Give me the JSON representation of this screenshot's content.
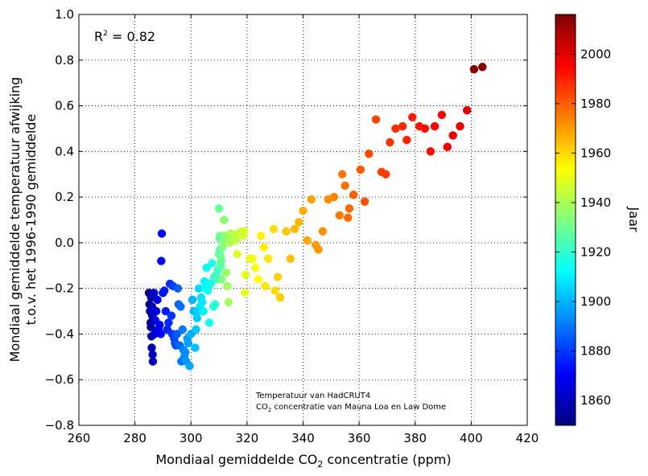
{
  "chart_data": {
    "type": "scatter",
    "title": "",
    "xlabel": "Mondiaal gemiddelde CO₂ concentratie (ppm)",
    "xlabel_parts": {
      "pre": "Mondiaal gemiddelde CO",
      "sub": "2",
      "post": " concentratie (ppm)"
    },
    "ylabel_line1": "Mondiaal gemiddelde temperatuur afwijking",
    "ylabel_line2": "t.o.v. het 1996-1990 gemiddelde",
    "xlim": [
      260,
      420
    ],
    "ylim": [
      -0.8,
      1.0
    ],
    "xticks": [
      260,
      280,
      300,
      320,
      340,
      360,
      380,
      400,
      420
    ],
    "yticks": [
      -0.8,
      -0.6,
      -0.4,
      -0.2,
      0.0,
      0.2,
      0.4,
      0.6,
      0.8,
      1.0
    ],
    "ytick_labels": [
      "−0.8",
      "−0.6",
      "−0.4",
      "−0.2",
      "0.0",
      "0.2",
      "0.4",
      "0.6",
      "0.8",
      "1.0"
    ],
    "grid": true,
    "annotation_r2": {
      "pre": "R",
      "sup": "2",
      "post": "  = 0.82"
    },
    "annotation_source_line1": "Temperatuur van HadCRUT4",
    "annotation_source_line2": {
      "pre": "CO",
      "sub": "2",
      "post": " concentratie van Mauna Loa en Law Dome"
    },
    "colorbar": {
      "label": "Jaar",
      "range": [
        1850,
        2016
      ],
      "ticks": [
        1860,
        1880,
        1900,
        1920,
        1940,
        1960,
        1980,
        2000
      ],
      "colormap": "jet"
    },
    "points": [
      {
        "x": 285.0,
        "y": -0.22,
        "year": 1850
      },
      {
        "x": 285.2,
        "y": -0.27,
        "year": 1851
      },
      {
        "x": 285.4,
        "y": -0.3,
        "year": 1852
      },
      {
        "x": 285.6,
        "y": -0.35,
        "year": 1853
      },
      {
        "x": 285.7,
        "y": -0.37,
        "year": 1854
      },
      {
        "x": 285.8,
        "y": -0.24,
        "year": 1855
      },
      {
        "x": 285.9,
        "y": -0.41,
        "year": 1856
      },
      {
        "x": 286.0,
        "y": -0.46,
        "year": 1857
      },
      {
        "x": 286.1,
        "y": -0.28,
        "year": 1858
      },
      {
        "x": 286.2,
        "y": -0.32,
        "year": 1859
      },
      {
        "x": 286.3,
        "y": -0.49,
        "year": 1860
      },
      {
        "x": 286.4,
        "y": -0.52,
        "year": 1861
      },
      {
        "x": 286.6,
        "y": -0.3,
        "year": 1862
      },
      {
        "x": 286.8,
        "y": -0.22,
        "year": 1863
      },
      {
        "x": 287.0,
        "y": -0.4,
        "year": 1864
      },
      {
        "x": 287.3,
        "y": -0.34,
        "year": 1865
      },
      {
        "x": 287.6,
        "y": -0.3,
        "year": 1866
      },
      {
        "x": 288.0,
        "y": -0.25,
        "year": 1867
      },
      {
        "x": 288.4,
        "y": -0.38,
        "year": 1868
      },
      {
        "x": 288.8,
        "y": -0.36,
        "year": 1869
      },
      {
        "x": 289.2,
        "y": -0.4,
        "year": 1870
      },
      {
        "x": 289.4,
        "y": -0.08,
        "year": 1871
      },
      {
        "x": 289.6,
        "y": 0.04,
        "year": 1872
      },
      {
        "x": 290.0,
        "y": -0.22,
        "year": 1873
      },
      {
        "x": 290.5,
        "y": -0.21,
        "year": 1874
      },
      {
        "x": 291.0,
        "y": -0.3,
        "year": 1875
      },
      {
        "x": 291.5,
        "y": -0.38,
        "year": 1876
      },
      {
        "x": 292.0,
        "y": -0.35,
        "year": 1877
      },
      {
        "x": 292.5,
        "y": -0.18,
        "year": 1878
      },
      {
        "x": 293.0,
        "y": -0.32,
        "year": 1879
      },
      {
        "x": 293.3,
        "y": -0.4,
        "year": 1880
      },
      {
        "x": 293.6,
        "y": -0.19,
        "year": 1881
      },
      {
        "x": 294.0,
        "y": -0.42,
        "year": 1882
      },
      {
        "x": 294.3,
        "y": -0.44,
        "year": 1883
      },
      {
        "x": 294.6,
        "y": -0.45,
        "year": 1884
      },
      {
        "x": 295.0,
        "y": -0.4,
        "year": 1885
      },
      {
        "x": 295.3,
        "y": -0.2,
        "year": 1886
      },
      {
        "x": 295.6,
        "y": -0.27,
        "year": 1887
      },
      {
        "x": 296.0,
        "y": -0.45,
        "year": 1888
      },
      {
        "x": 296.3,
        "y": -0.28,
        "year": 1889
      },
      {
        "x": 296.6,
        "y": -0.52,
        "year": 1890
      },
      {
        "x": 297.0,
        "y": -0.38,
        "year": 1891
      },
      {
        "x": 297.3,
        "y": -0.47,
        "year": 1892
      },
      {
        "x": 297.6,
        "y": -0.5,
        "year": 1893
      },
      {
        "x": 298.0,
        "y": -0.48,
        "year": 1894
      },
      {
        "x": 298.3,
        "y": -0.52,
        "year": 1895
      },
      {
        "x": 298.7,
        "y": -0.42,
        "year": 1896
      },
      {
        "x": 299.0,
        "y": -0.44,
        "year": 1897
      },
      {
        "x": 299.5,
        "y": -0.54,
        "year": 1898
      },
      {
        "x": 300.0,
        "y": -0.4,
        "year": 1899
      },
      {
        "x": 300.5,
        "y": -0.25,
        "year": 1900
      },
      {
        "x": 301.0,
        "y": -0.3,
        "year": 1901
      },
      {
        "x": 301.5,
        "y": -0.46,
        "year": 1902
      },
      {
        "x": 301.8,
        "y": -0.38,
        "year": 1903
      },
      {
        "x": 302.2,
        "y": -0.33,
        "year": 1904
      },
      {
        "x": 302.5,
        "y": -0.3,
        "year": 1905
      },
      {
        "x": 302.8,
        "y": -0.2,
        "year": 1906
      },
      {
        "x": 303.2,
        "y": -0.28,
        "year": 1907
      },
      {
        "x": 303.6,
        "y": -0.24,
        "year": 1908
      },
      {
        "x": 304.0,
        "y": -0.26,
        "year": 1909
      },
      {
        "x": 304.4,
        "y": -0.3,
        "year": 1910
      },
      {
        "x": 304.8,
        "y": -0.17,
        "year": 1911
      },
      {
        "x": 305.2,
        "y": -0.2,
        "year": 1912
      },
      {
        "x": 305.6,
        "y": -0.11,
        "year": 1913
      },
      {
        "x": 306.0,
        "y": -0.21,
        "year": 1914
      },
      {
        "x": 306.5,
        "y": -0.35,
        "year": 1915
      },
      {
        "x": 307.0,
        "y": -0.18,
        "year": 1916
      },
      {
        "x": 307.5,
        "y": -0.09,
        "year": 1917
      },
      {
        "x": 308.0,
        "y": -0.28,
        "year": 1918
      },
      {
        "x": 308.3,
        "y": -0.15,
        "year": 1919
      },
      {
        "x": 308.6,
        "y": -0.27,
        "year": 1920
      },
      {
        "x": 309.0,
        "y": -0.14,
        "year": 1921
      },
      {
        "x": 309.3,
        "y": -0.16,
        "year": 1922
      },
      {
        "x": 309.6,
        "y": -0.12,
        "year": 1923
      },
      {
        "x": 310.0,
        "y": -0.05,
        "year": 1924
      },
      {
        "x": 310.2,
        "y": 0.02,
        "year": 1925
      },
      {
        "x": 310.4,
        "y": -0.03,
        "year": 1926
      },
      {
        "x": 310.6,
        "y": -0.1,
        "year": 1927
      },
      {
        "x": 310.8,
        "y": -0.08,
        "year": 1928
      },
      {
        "x": 310.0,
        "y": 0.15,
        "year": 1929
      },
      {
        "x": 310.3,
        "y": 0.03,
        "year": 1930
      },
      {
        "x": 310.6,
        "y": -0.06,
        "year": 1931
      },
      {
        "x": 310.9,
        "y": -0.16,
        "year": 1932
      },
      {
        "x": 311.2,
        "y": -0.02,
        "year": 1933
      },
      {
        "x": 311.5,
        "y": 0.0,
        "year": 1934
      },
      {
        "x": 311.8,
        "y": 0.1,
        "year": 1935
      },
      {
        "x": 312.2,
        "y": 0.03,
        "year": 1936
      },
      {
        "x": 312.6,
        "y": -0.13,
        "year": 1937
      },
      {
        "x": 313.0,
        "y": -0.19,
        "year": 1938
      },
      {
        "x": 313.4,
        "y": -0.26,
        "year": 1939
      },
      {
        "x": 313.8,
        "y": 0.0,
        "year": 1940
      },
      {
        "x": 314.3,
        "y": 0.04,
        "year": 1941
      },
      {
        "x": 315.0,
        "y": 0.03,
        "year": 1942
      },
      {
        "x": 316.0,
        "y": 0.01,
        "year": 1943
      },
      {
        "x": 317.0,
        "y": 0.04,
        "year": 1944
      },
      {
        "x": 318.0,
        "y": 0.05,
        "year": 1945
      },
      {
        "x": 318.5,
        "y": 0.03,
        "year": 1946
      },
      {
        "x": 319.0,
        "y": 0.05,
        "year": 1947
      },
      {
        "x": 316.5,
        "y": -0.05,
        "year": 1948
      },
      {
        "x": 319.5,
        "y": -0.14,
        "year": 1949
      },
      {
        "x": 319.2,
        "y": -0.22,
        "year": 1950
      },
      {
        "x": 321.0,
        "y": -0.07,
        "year": 1951
      },
      {
        "x": 322.0,
        "y": -0.07,
        "year": 1952
      },
      {
        "x": 323.0,
        "y": -0.11,
        "year": 1953
      },
      {
        "x": 324.0,
        "y": -0.16,
        "year": 1954
      },
      {
        "x": 325.0,
        "y": 0.03,
        "year": 1955
      },
      {
        "x": 326.0,
        "y": -0.02,
        "year": 1956
      },
      {
        "x": 326.5,
        "y": -0.19,
        "year": 1957
      },
      {
        "x": 327.5,
        "y": -0.07,
        "year": 1958
      },
      {
        "x": 329.5,
        "y": 0.06,
        "year": 1959
      },
      {
        "x": 330.0,
        "y": -0.21,
        "year": 1960
      },
      {
        "x": 331.0,
        "y": -0.15,
        "year": 1961
      },
      {
        "x": 331.8,
        "y": -0.24,
        "year": 1962
      },
      {
        "x": 334.0,
        "y": 0.05,
        "year": 1963
      },
      {
        "x": 335.5,
        "y": -0.07,
        "year": 1964
      },
      {
        "x": 337.0,
        "y": 0.06,
        "year": 1965
      },
      {
        "x": 338.5,
        "y": 0.09,
        "year": 1966
      },
      {
        "x": 340.0,
        "y": 0.14,
        "year": 1967
      },
      {
        "x": 341.5,
        "y": 0.01,
        "year": 1968
      },
      {
        "x": 343.0,
        "y": 0.19,
        "year": 1969
      },
      {
        "x": 344.5,
        "y": -0.01,
        "year": 1970
      },
      {
        "x": 345.5,
        "y": -0.03,
        "year": 1971
      },
      {
        "x": 347.0,
        "y": 0.05,
        "year": 1972
      },
      {
        "x": 349.0,
        "y": 0.19,
        "year": 1973
      },
      {
        "x": 351.0,
        "y": 0.2,
        "year": 1974
      },
      {
        "x": 353.0,
        "y": 0.12,
        "year": 1975
      },
      {
        "x": 354.0,
        "y": 0.3,
        "year": 1976
      },
      {
        "x": 355.0,
        "y": 0.25,
        "year": 1977
      },
      {
        "x": 356.0,
        "y": 0.11,
        "year": 1978
      },
      {
        "x": 356.5,
        "y": 0.15,
        "year": 1979
      },
      {
        "x": 358.0,
        "y": 0.21,
        "year": 1980
      },
      {
        "x": 360.5,
        "y": 0.32,
        "year": 1981
      },
      {
        "x": 362.0,
        "y": 0.18,
        "year": 1982
      },
      {
        "x": 363.5,
        "y": 0.39,
        "year": 1983
      },
      {
        "x": 366.0,
        "y": 0.54,
        "year": 1984
      },
      {
        "x": 368.0,
        "y": 0.31,
        "year": 1985
      },
      {
        "x": 369.5,
        "y": 0.3,
        "year": 1986
      },
      {
        "x": 371.0,
        "y": 0.44,
        "year": 1987
      },
      {
        "x": 373.0,
        "y": 0.5,
        "year": 1988
      },
      {
        "x": 375.5,
        "y": 0.51,
        "year": 1989
      },
      {
        "x": 377.0,
        "y": 0.45,
        "year": 1990
      },
      {
        "x": 379.0,
        "y": 0.55,
        "year": 1991
      },
      {
        "x": 381.5,
        "y": 0.51,
        "year": 1992
      },
      {
        "x": 383.5,
        "y": 0.5,
        "year": 1993
      },
      {
        "x": 385.5,
        "y": 0.4,
        "year": 1994
      },
      {
        "x": 387.0,
        "y": 0.51,
        "year": 1995
      },
      {
        "x": 389.5,
        "y": 0.56,
        "year": 1996
      },
      {
        "x": 391.5,
        "y": 0.42,
        "year": 1997
      },
      {
        "x": 393.5,
        "y": 0.47,
        "year": 1998
      },
      {
        "x": 396.0,
        "y": 0.51,
        "year": 1999
      },
      {
        "x": 398.5,
        "y": 0.58,
        "year": 2000
      },
      {
        "x": 401.0,
        "y": 0.76,
        "year": 2015
      },
      {
        "x": 404.0,
        "y": 0.77,
        "year": 2016
      }
    ]
  }
}
